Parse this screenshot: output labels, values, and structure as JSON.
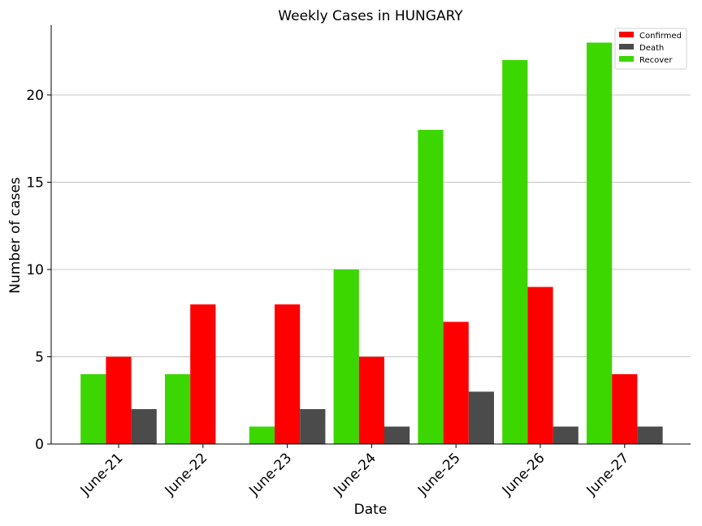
{
  "chart_data": {
    "type": "bar",
    "title": "Weekly Cases in HUNGARY",
    "xlabel": "Date",
    "ylabel": "Number of cases",
    "categories": [
      "June-21",
      "June-22",
      "June-23",
      "June-24",
      "June-25",
      "June-26",
      "June-27"
    ],
    "series": [
      {
        "name": "Recover",
        "color": "#3cd600",
        "values": [
          4,
          4,
          1,
          10,
          18,
          22,
          23
        ]
      },
      {
        "name": "Confirmed",
        "color": "#ff0000",
        "values": [
          5,
          8,
          8,
          5,
          7,
          9,
          4
        ]
      },
      {
        "name": "Death",
        "color": "#4b4b4b",
        "values": [
          2,
          0,
          2,
          1,
          3,
          1,
          1
        ]
      }
    ],
    "legend_order": [
      "Confirmed",
      "Death",
      "Recover"
    ],
    "ylim": [
      0,
      24
    ],
    "yticks": [
      0,
      5,
      10,
      15,
      20
    ],
    "grid": "horizontal",
    "legend_position": "top-right"
  }
}
